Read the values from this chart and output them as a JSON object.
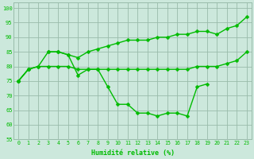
{
  "xlabel": "Humidité relative (%)",
  "x": [
    0,
    1,
    2,
    3,
    4,
    5,
    6,
    7,
    8,
    9,
    10,
    11,
    12,
    13,
    14,
    15,
    16,
    17,
    18,
    19,
    20,
    21,
    22,
    23
  ],
  "series": {
    "upper": [
      75,
      79,
      80,
      85,
      85,
      84,
      83,
      85,
      86,
      87,
      88,
      89,
      89,
      89,
      90,
      90,
      91,
      91,
      92,
      92,
      91,
      93,
      94,
      97
    ],
    "middle": [
      75,
      79,
      80,
      80,
      80,
      80,
      79,
      79,
      79,
      79,
      79,
      79,
      79,
      79,
      79,
      79,
      79,
      79,
      80,
      80,
      80,
      81,
      82,
      85
    ],
    "lower": [
      75,
      79,
      null,
      85,
      85,
      84,
      77,
      79,
      79,
      73,
      67,
      67,
      64,
      64,
      63,
      64,
      64,
      63,
      73,
      74,
      null,
      null,
      null,
      null
    ]
  },
  "ylim": [
    55,
    102
  ],
  "yticks": [
    55,
    60,
    65,
    70,
    75,
    80,
    85,
    90,
    95,
    100
  ],
  "xlim": [
    -0.5,
    23.5
  ],
  "line_color": "#00bb00",
  "bg_color": "#cce8dc",
  "grid_color": "#99bbaa",
  "marker": "D",
  "markersize": 2.5,
  "linewidth": 1.0
}
